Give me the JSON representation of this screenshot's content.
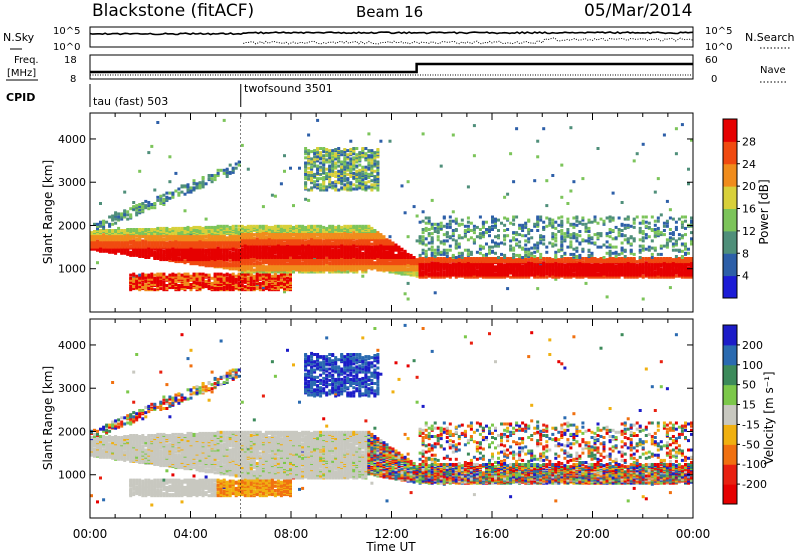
{
  "header": {
    "station": "Blackstone (fitACF)",
    "beam": "Beam 16",
    "date": "05/Mar/2014"
  },
  "noise_panel": {
    "left_label": "N.Sky",
    "right_label": "N.Search",
    "left_ticks": [
      "10^5",
      "10^0"
    ],
    "right_ticks": [
      "10^5",
      "10^0"
    ]
  },
  "freq_panel": {
    "left_label_line1": "Freq.",
    "left_label_line2": "[MHz]",
    "right_label": "Nave",
    "left_ticks": [
      "18",
      "8"
    ],
    "right_ticks": [
      "60",
      "0"
    ],
    "freq_change_hour": 13.0
  },
  "cpid_panel": {
    "label": "CPID",
    "modes": [
      {
        "name": "tau (fast) 503",
        "start_hour": 0.0
      },
      {
        "name": "twofsound 3501",
        "start_hour": 6.0
      }
    ]
  },
  "chart_data": [
    {
      "type": "heatmap",
      "title": "",
      "xlabel": "Time UT",
      "ylabel": "Slant Range [km]",
      "xlim": [
        0,
        24
      ],
      "ylim": [
        0,
        4600
      ],
      "x_tick_labels": [
        "00:00",
        "04:00",
        "08:00",
        "12:00",
        "16:00",
        "20:00",
        "00:00"
      ],
      "x_tick_hours": [
        0,
        4,
        8,
        12,
        16,
        20,
        24
      ],
      "y_tick_labels": [
        "1000",
        "2000",
        "3000",
        "4000"
      ],
      "y_ticks": [
        1000,
        2000,
        3000,
        4000
      ],
      "colorbar": {
        "label": "Power [dB]",
        "ticks": [
          "4",
          "8",
          "12",
          "16",
          "20",
          "24",
          "28"
        ],
        "colors": [
          "#1c1cd6",
          "#2d5fa8",
          "#4f8f7a",
          "#7cc45a",
          "#d8d03a",
          "#f08c1c",
          "#f04a10",
          "#e60000"
        ]
      },
      "features": [
        {
          "name": "main band",
          "hours": [
            0,
            24
          ],
          "range_km": [
            900,
            1800
          ]
        },
        {
          "name": "near band",
          "hours": [
            1.5,
            8
          ],
          "range_km": [
            500,
            900
          ]
        },
        {
          "name": "upper scatter",
          "hours": [
            8.5,
            11.5
          ],
          "range_km": [
            2800,
            3800
          ]
        }
      ]
    },
    {
      "type": "heatmap",
      "title": "",
      "xlabel": "Time UT",
      "ylabel": "Slant Range [km]",
      "xlim": [
        0,
        24
      ],
      "ylim": [
        0,
        4600
      ],
      "x_tick_labels": [
        "00:00",
        "04:00",
        "08:00",
        "12:00",
        "16:00",
        "20:00",
        "00:00"
      ],
      "x_tick_hours": [
        0,
        4,
        8,
        12,
        16,
        20,
        24
      ],
      "y_tick_labels": [
        "1000",
        "2000",
        "3000",
        "4000"
      ],
      "y_ticks": [
        1000,
        2000,
        3000,
        4000
      ],
      "colorbar": {
        "label": "Velocity [m s⁻¹]",
        "ticks": [
          "200",
          "100",
          "50",
          "15",
          "-15",
          "-50",
          "-100",
          "-200"
        ],
        "colors": [
          "#1c1cc8",
          "#2a6ab0",
          "#3c8a5a",
          "#7cc84a",
          "#c8c8c0",
          "#f0b010",
          "#f07010",
          "#e82010",
          "#e60000"
        ]
      }
    }
  ]
}
